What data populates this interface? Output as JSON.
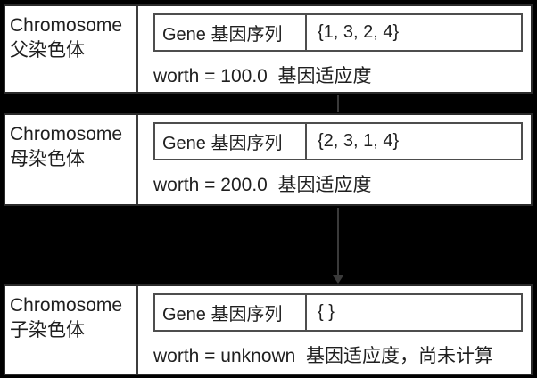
{
  "colors": {
    "background": "#000000",
    "box_background": "#ffffff",
    "text": "#1f1f1f",
    "outer_border": "#2b2b2b",
    "inner_border": "#4d4d4d",
    "arrow": "#3a3a3a"
  },
  "sections": [
    {
      "title_en": "Chromosome",
      "title_zh": "父染色体",
      "gene_label": "Gene 基因序列",
      "gene_value": "{1, 3, 2, 4}",
      "worth": "worth = 100.0  基因适应度"
    },
    {
      "title_en": "Chromosome",
      "title_zh": "母染色体",
      "gene_label": "Gene 基因序列",
      "gene_value": "{2, 3, 1, 4}",
      "worth": "worth = 200.0  基因适应度"
    },
    {
      "title_en": "Chromosome",
      "title_zh": "子染色体",
      "gene_label": "Gene 基因序列",
      "gene_value": "{ }",
      "worth": "worth = unknown  基因适应度，尚未计算"
    }
  ],
  "arrow": {
    "direction": "down"
  }
}
